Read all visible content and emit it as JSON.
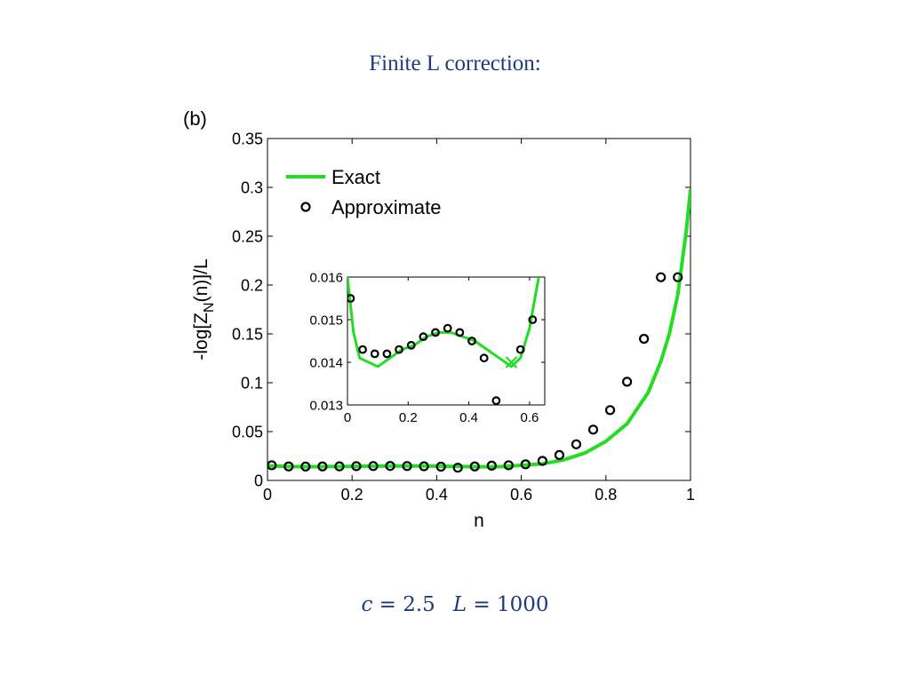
{
  "slide": {
    "title": "Finite L correction:",
    "panel_tag": "(b)",
    "formula": {
      "c_symbol": "c",
      "c_equals": " = 2.5",
      "L_symbol": "L",
      "L_equals": " = 1000"
    }
  },
  "colors": {
    "exact_line": "#22dd22",
    "approx_marker": "#000000",
    "title_text": "#1f3a7a"
  },
  "chart_data": [
    {
      "type": "line",
      "role": "main",
      "xlabel": "n",
      "ylabel_main": "-log[Z",
      "ylabel_sub": "N",
      "ylabel_tail": "(n)]/L",
      "xlim": [
        0,
        1
      ],
      "ylim": [
        0,
        0.35
      ],
      "xticks": [
        0,
        0.2,
        0.4,
        0.6,
        0.8,
        1
      ],
      "xtick_labels": [
        "0",
        "0.2",
        "0.4",
        "0.6",
        "0.8",
        "1"
      ],
      "yticks": [
        0,
        0.05,
        0.1,
        0.15,
        0.2,
        0.25,
        0.3,
        0.35
      ],
      "ytick_labels": [
        "0",
        "0.05",
        "0.1",
        "0.15",
        "0.2",
        "0.25",
        "0.3",
        "0.35"
      ],
      "legend": {
        "placement": "top-left",
        "entries": [
          {
            "label": "Exact",
            "marker": "line"
          },
          {
            "label": "Approximate",
            "marker": "circle"
          }
        ]
      },
      "series": [
        {
          "name": "Exact",
          "style": "line",
          "x": [
            0.0,
            0.05,
            0.1,
            0.15,
            0.2,
            0.25,
            0.3,
            0.35,
            0.4,
            0.45,
            0.5,
            0.55,
            0.6,
            0.65,
            0.7,
            0.75,
            0.8,
            0.85,
            0.9,
            0.93,
            0.95,
            0.97,
            0.99,
            1.0
          ],
          "y": [
            0.015,
            0.0142,
            0.014,
            0.0142,
            0.0144,
            0.0146,
            0.0147,
            0.0147,
            0.0146,
            0.0143,
            0.014,
            0.0141,
            0.0155,
            0.017,
            0.021,
            0.028,
            0.04,
            0.058,
            0.09,
            0.122,
            0.15,
            0.19,
            0.255,
            0.298
          ]
        },
        {
          "name": "Approximate",
          "style": "circle",
          "x": [
            0.01,
            0.05,
            0.09,
            0.13,
            0.17,
            0.21,
            0.25,
            0.29,
            0.33,
            0.37,
            0.41,
            0.45,
            0.49,
            0.53,
            0.57,
            0.61,
            0.65,
            0.69,
            0.73,
            0.77,
            0.81,
            0.85,
            0.89,
            0.93,
            0.97
          ],
          "y": [
            0.0155,
            0.0143,
            0.0142,
            0.0143,
            0.0144,
            0.0146,
            0.0147,
            0.0148,
            0.0147,
            0.0145,
            0.0141,
            0.013,
            0.0143,
            0.0151,
            0.0155,
            0.0165,
            0.02,
            0.026,
            0.037,
            0.052,
            0.072,
            0.101,
            0.145,
            0.208,
            0.208
          ]
        }
      ]
    },
    {
      "type": "line",
      "role": "inset",
      "xlim": [
        0,
        0.65
      ],
      "ylim": [
        0.013,
        0.016
      ],
      "xticks": [
        0,
        0.2,
        0.4,
        0.6
      ],
      "xtick_labels": [
        "0",
        "0.2",
        "0.4",
        "0.6"
      ],
      "yticks": [
        0.013,
        0.014,
        0.015,
        0.016
      ],
      "ytick_labels": [
        "0.013",
        "0.014",
        "0.015",
        "0.016"
      ],
      "marker_x_point": {
        "x": 0.54,
        "y": 0.014
      },
      "series": [
        {
          "name": "Exact",
          "style": "line",
          "x": [
            0.0,
            0.02,
            0.04,
            0.07,
            0.1,
            0.14,
            0.18,
            0.22,
            0.26,
            0.3,
            0.34,
            0.38,
            0.42,
            0.46,
            0.5,
            0.54,
            0.57,
            0.6,
            0.63
          ],
          "y": [
            0.016,
            0.0147,
            0.0141,
            0.014,
            0.0139,
            0.0141,
            0.0143,
            0.0144,
            0.0146,
            0.0147,
            0.0147,
            0.0146,
            0.0145,
            0.0143,
            0.0141,
            0.0139,
            0.0141,
            0.0148,
            0.016
          ]
        },
        {
          "name": "Approximate",
          "style": "circle",
          "x": [
            0.01,
            0.05,
            0.09,
            0.13,
            0.17,
            0.21,
            0.25,
            0.29,
            0.33,
            0.37,
            0.41,
            0.45,
            0.49,
            0.57,
            0.61
          ],
          "y": [
            0.0155,
            0.0143,
            0.0142,
            0.0142,
            0.0143,
            0.0144,
            0.0146,
            0.0147,
            0.0148,
            0.0147,
            0.0145,
            0.0141,
            0.0131,
            0.0143,
            0.015
          ]
        }
      ]
    }
  ]
}
